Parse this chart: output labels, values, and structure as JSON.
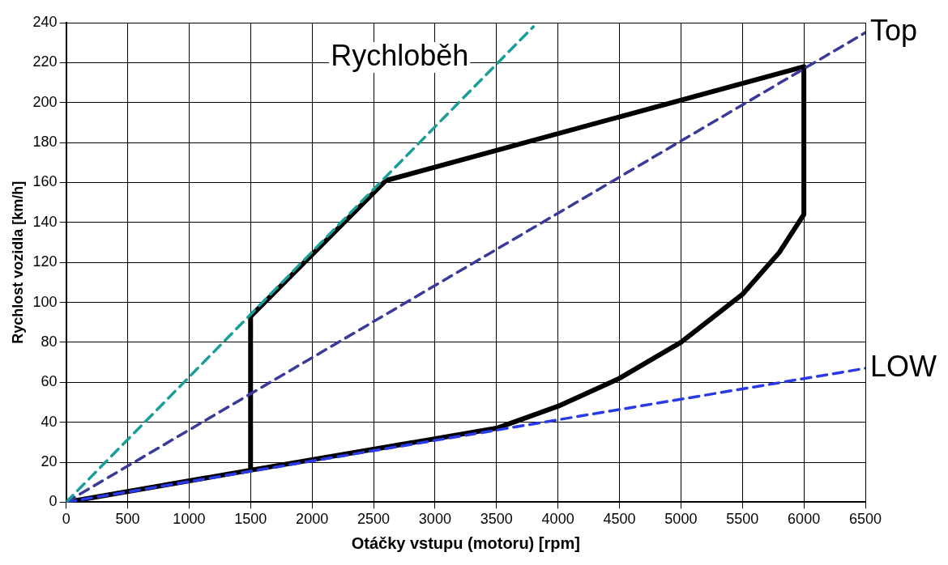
{
  "chart_data": {
    "type": "line",
    "xlabel": "Otáčky vstupu (motoru) [rpm]",
    "ylabel": "Rychlost vozidla [km/h]",
    "xlim": [
      0,
      6500
    ],
    "xticks": [
      0,
      500,
      1000,
      1500,
      2000,
      2500,
      3000,
      3500,
      4000,
      4500,
      5000,
      5500,
      6000,
      6500
    ],
    "ylim": [
      0,
      240
    ],
    "yticks": [
      0,
      20,
      40,
      60,
      80,
      100,
      120,
      140,
      160,
      180,
      200,
      220,
      240
    ],
    "grid": true,
    "legend": false,
    "marker": "none",
    "series": [
      {
        "name": "Rychloběh",
        "color": "#1a9e9a",
        "line_style": "dashed",
        "x": [
          0,
          3800
        ],
        "values": [
          0,
          238
        ]
      },
      {
        "name": "Top",
        "color": "#3a3a9a",
        "line_style": "dashed",
        "x": [
          0,
          6500
        ],
        "values": [
          0,
          235
        ]
      },
      {
        "name": "LOW",
        "color": "#2a3ae8",
        "line_style": "dashed",
        "x": [
          0,
          6500
        ],
        "values": [
          0,
          67
        ]
      },
      {
        "color": "#000000",
        "line_style": "solid",
        "x": [
          0,
          1500,
          1500,
          2600,
          6000,
          6000,
          5800,
          5500,
          5000,
          4500,
          4000,
          3500,
          1500
        ],
        "values": [
          0,
          16,
          93,
          161,
          218,
          144,
          125,
          104,
          80,
          62,
          48,
          37,
          16
        ]
      }
    ]
  }
}
